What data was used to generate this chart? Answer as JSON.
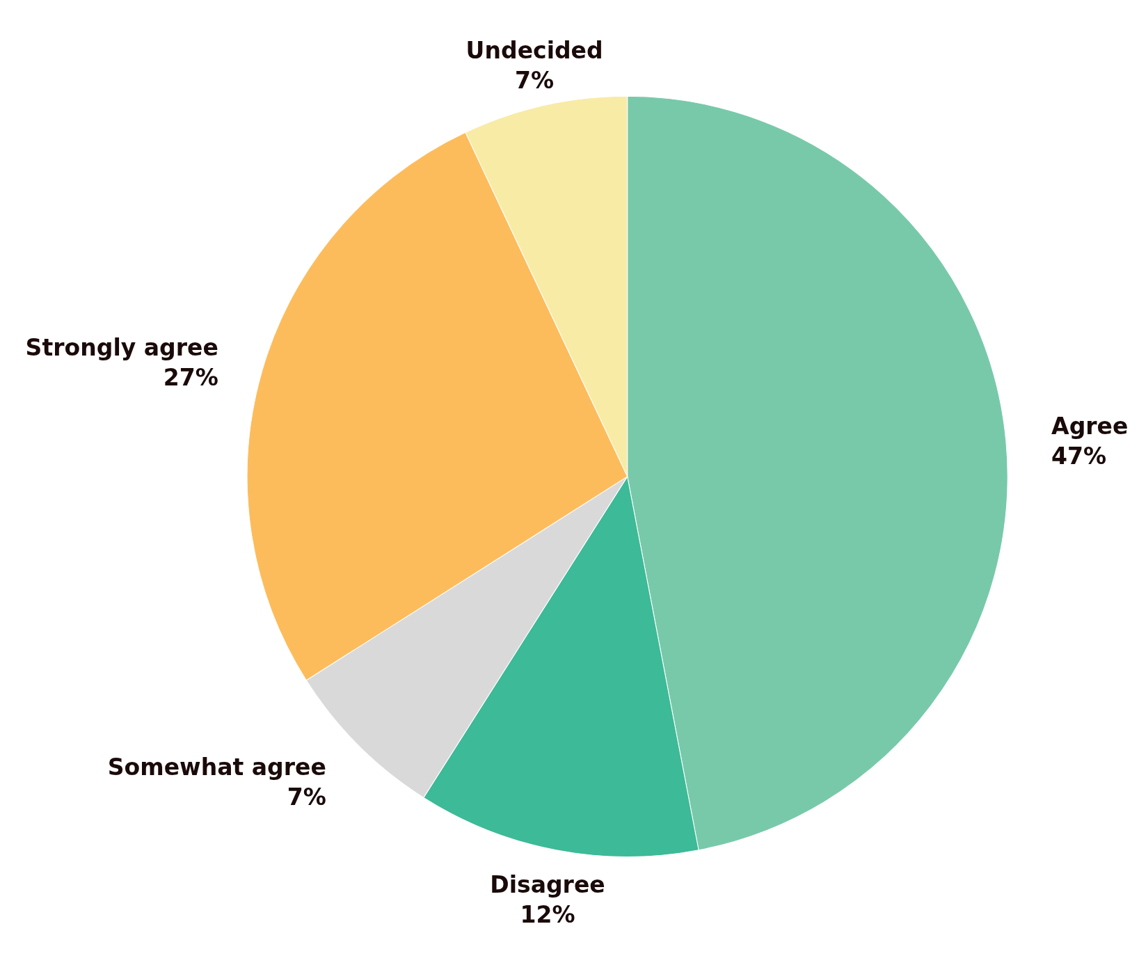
{
  "chart_data": {
    "type": "pie",
    "categories": [
      "Agree",
      "Disagree",
      "Somewhat agree",
      "Strongly agree",
      "Undecided"
    ],
    "values": [
      47,
      12,
      7,
      27,
      7
    ],
    "value_labels": [
      "47%",
      "12%",
      "7%",
      "27%",
      "7%"
    ],
    "colors": [
      "#78c9aa",
      "#3dba97",
      "#d9d9d9",
      "#fdbc5b",
      "#f8eba6"
    ]
  }
}
